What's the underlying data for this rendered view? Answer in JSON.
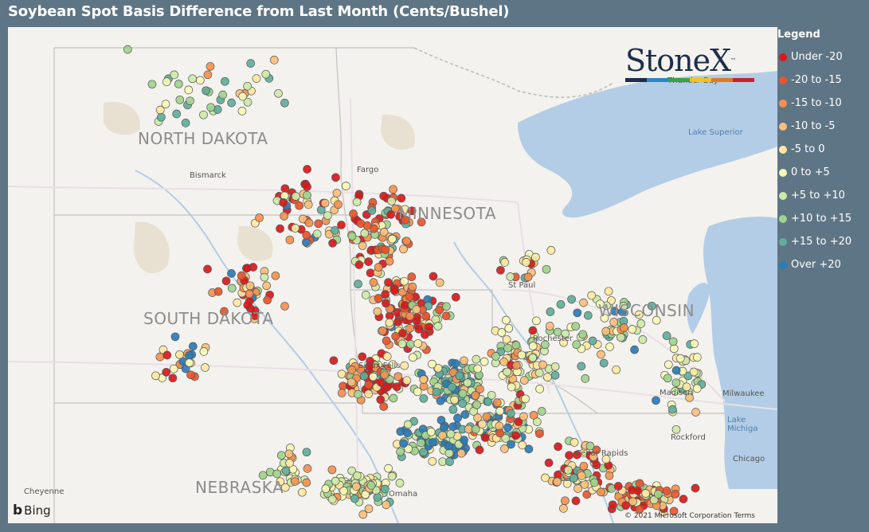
{
  "title": "Soybean Spot Basis Difference from Last Month (Cents/Bushel)",
  "logo": {
    "text": "StoneX",
    "tm": "™",
    "bar_colors": [
      "#1c2e4a",
      "#2f86c6",
      "#3aa04a",
      "#f2c21b",
      "#e07a1f",
      "#c8202e"
    ]
  },
  "legend": {
    "title": "Legend",
    "items": [
      {
        "label": "Under -20",
        "color": "#d7191c"
      },
      {
        "label": "-20 to -15",
        "color": "#e8552c"
      },
      {
        "label": "-15 to -10",
        "color": "#f4914f"
      },
      {
        "label": "-10 to -5",
        "color": "#fbbf7a"
      },
      {
        "label": "-5 to 0",
        "color": "#fee8a1"
      },
      {
        "label": "0 to +5",
        "color": "#f6f8b5"
      },
      {
        "label": "+5 to +10",
        "color": "#cde9a7"
      },
      {
        "label": "+10 to +15",
        "color": "#9fd48d"
      },
      {
        "label": "+15 to +20",
        "color": "#5fae9c"
      },
      {
        "label": "Over +20",
        "color": "#2c7bb6"
      }
    ]
  },
  "map": {
    "states": {
      "nd": "NORTH DAKOTA",
      "mn": "MINNESOTA",
      "sd": "SOUTH DAKOTA",
      "wi": "WISCONSIN",
      "ne": "NEBRASKA"
    },
    "cities": {
      "bismarck": "Bismarck",
      "fargo": "Fargo",
      "stpaul": "St Paul",
      "rochester": "Rochester",
      "madison": "Madison",
      "milwaukee": "Milwaukee",
      "rockford": "Rockford",
      "cedarrapids": "Cedar Rapids",
      "chicago": "Chicago",
      "omaha": "Omaha",
      "cheyenne": "Cheyenne",
      "thunderbay": "Thunder Bay",
      "siouxfalls": "Sioux Falls"
    },
    "lakes": {
      "superior": "Lake Superior",
      "michigan": "Lake Michiga"
    },
    "attribution": {
      "bing": "Bing",
      "copyright": "© 2021 Microsoft Corporation",
      "terms": "Terms"
    }
  }
}
